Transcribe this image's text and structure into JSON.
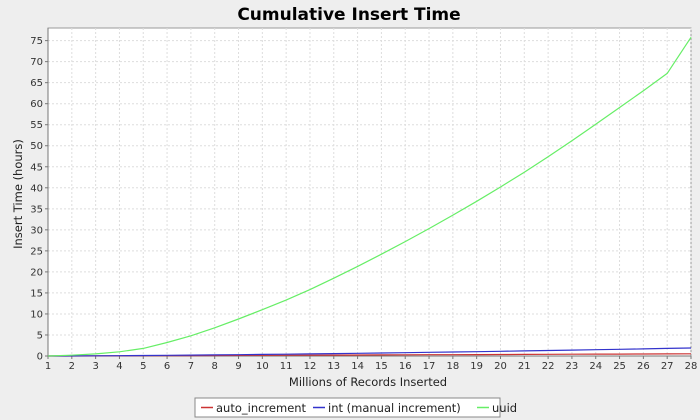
{
  "chart_data": {
    "type": "line",
    "title": "Cumulative Insert Time",
    "xlabel": "Millions of Records Inserted",
    "ylabel": "Insert Time (hours)",
    "xlim": [
      1,
      28
    ],
    "ylim": [
      0,
      78
    ],
    "xticks": [
      1,
      2,
      3,
      4,
      5,
      6,
      7,
      8,
      9,
      10,
      11,
      12,
      13,
      14,
      15,
      16,
      17,
      18,
      19,
      20,
      21,
      22,
      23,
      24,
      25,
      26,
      27,
      28
    ],
    "yticks": [
      0,
      5,
      10,
      15,
      20,
      25,
      30,
      35,
      40,
      45,
      50,
      55,
      60,
      65,
      70,
      75
    ],
    "grid": true,
    "legend_position": "bottom",
    "x": [
      1,
      2,
      3,
      4,
      5,
      6,
      7,
      8,
      9,
      10,
      11,
      12,
      13,
      14,
      15,
      16,
      17,
      18,
      19,
      20,
      21,
      22,
      23,
      24,
      25,
      26,
      27,
      28
    ],
    "series": [
      {
        "name": "auto_increment",
        "color": "#cc3333",
        "values": [
          0.0,
          0.01,
          0.02,
          0.04,
          0.06,
          0.08,
          0.1,
          0.12,
          0.14,
          0.16,
          0.18,
          0.2,
          0.22,
          0.24,
          0.26,
          0.28,
          0.3,
          0.32,
          0.34,
          0.36,
          0.38,
          0.4,
          0.42,
          0.44,
          0.46,
          0.48,
          0.5,
          0.52
        ]
      },
      {
        "name": "int (manual increment)",
        "color": "#3333cc",
        "values": [
          0.0,
          0.02,
          0.05,
          0.08,
          0.12,
          0.16,
          0.21,
          0.26,
          0.31,
          0.37,
          0.43,
          0.5,
          0.57,
          0.64,
          0.71,
          0.79,
          0.87,
          0.95,
          1.03,
          1.12,
          1.21,
          1.3,
          1.4,
          1.49,
          1.59,
          1.69,
          1.8,
          1.91
        ]
      },
      {
        "name": "uuid",
        "color": "#66ee66",
        "values": [
          0.0,
          0.2,
          0.5,
          1.0,
          1.8,
          3.2,
          4.8,
          6.7,
          8.8,
          11.0,
          13.3,
          15.8,
          18.5,
          21.3,
          24.2,
          27.2,
          30.3,
          33.5,
          36.8,
          40.2,
          43.7,
          47.4,
          51.2,
          55.1,
          59.1,
          63.1,
          67.2,
          75.8
        ]
      }
    ]
  }
}
